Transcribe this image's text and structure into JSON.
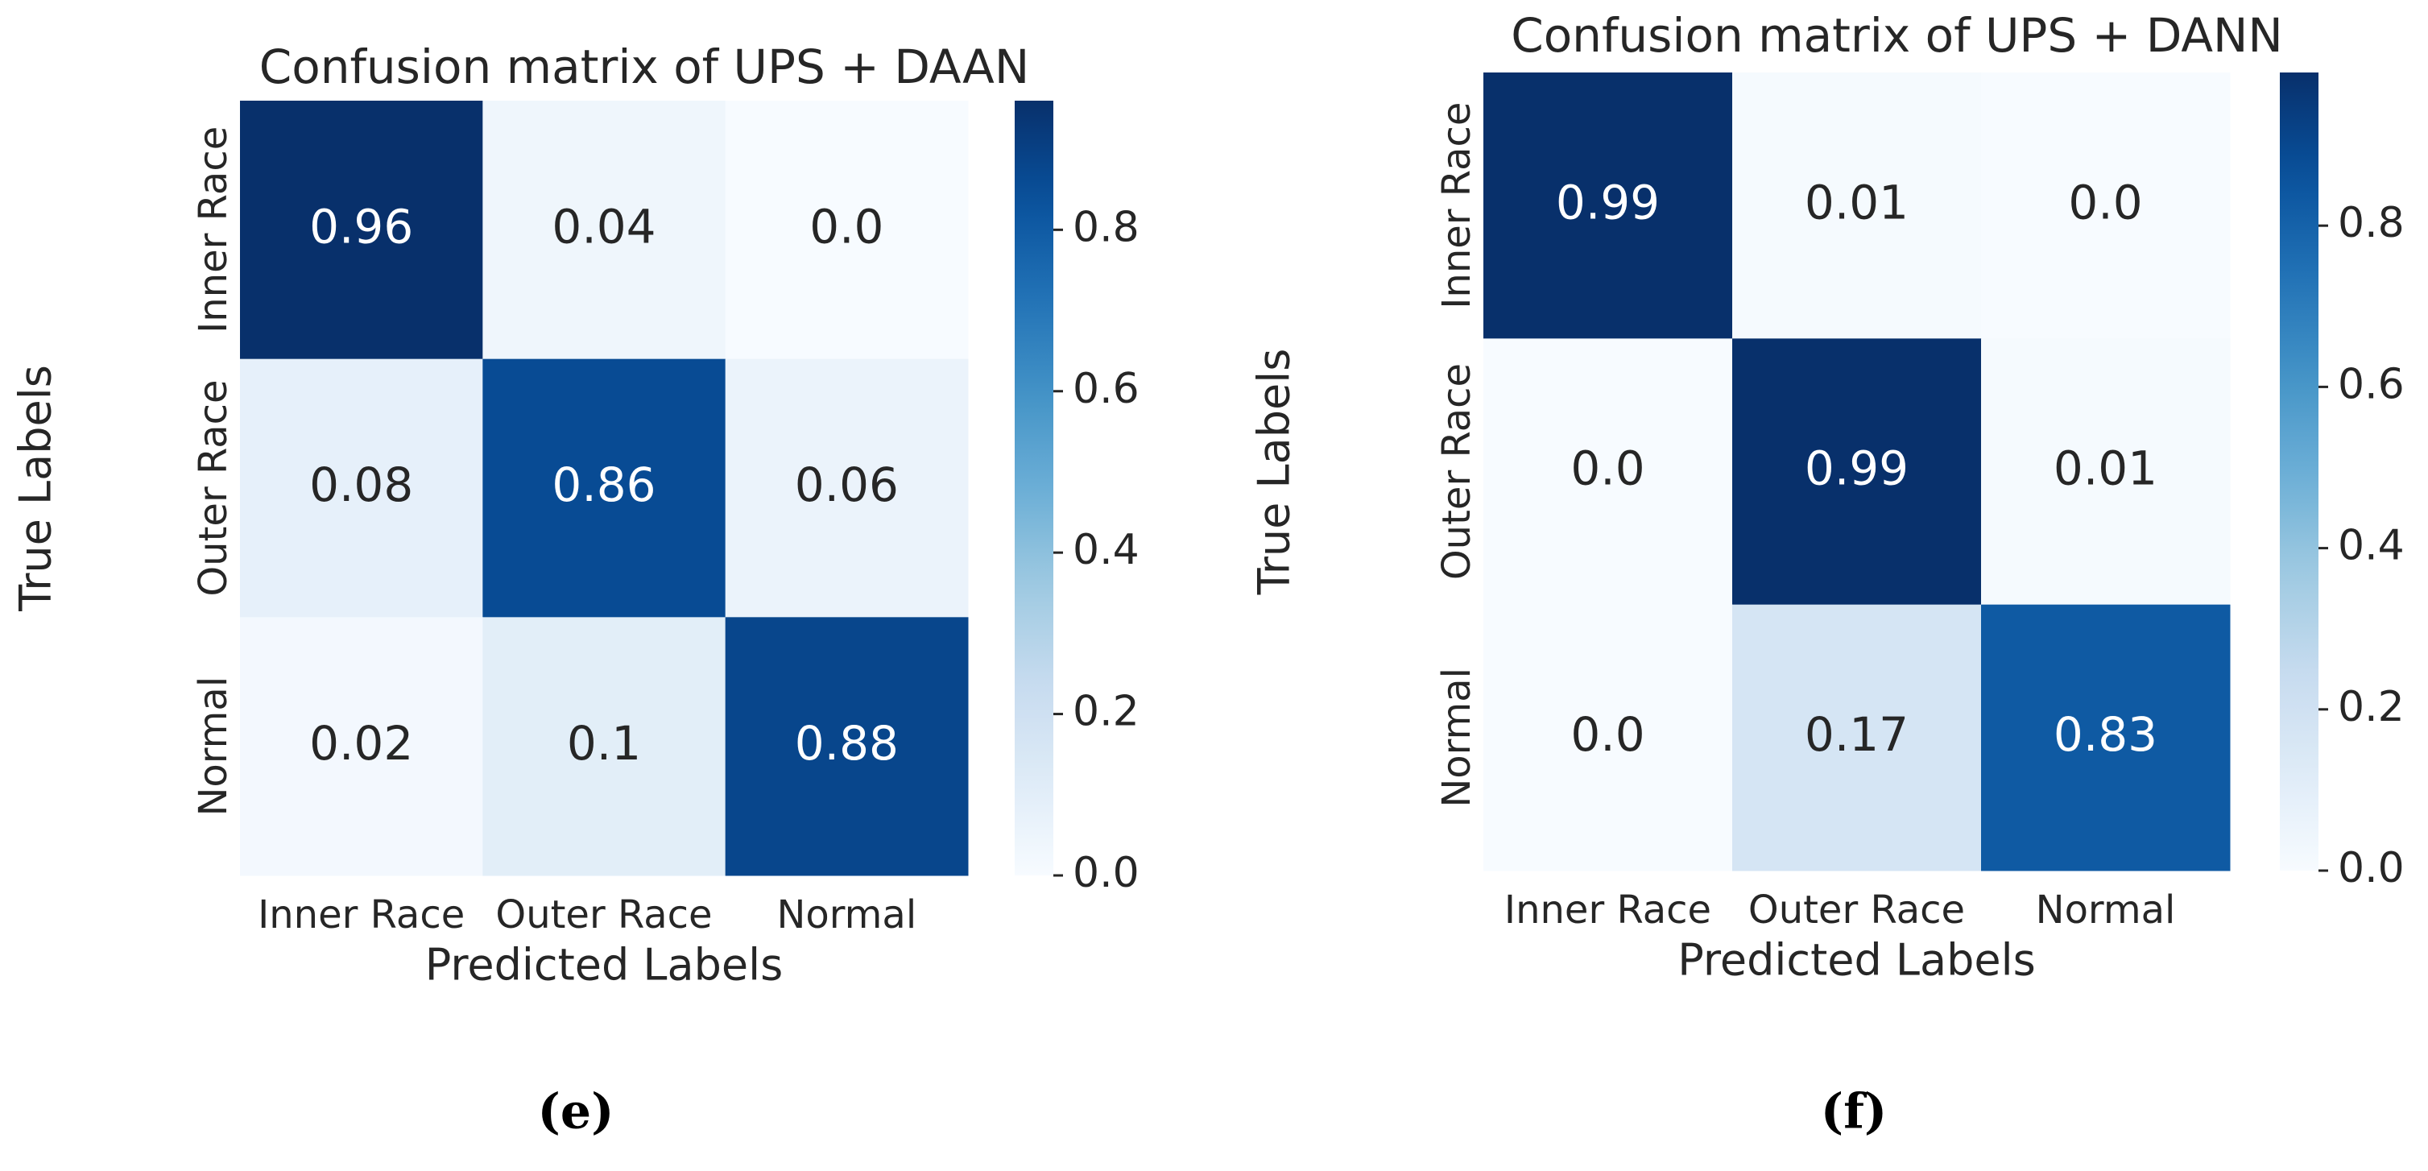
{
  "chart_data": [
    {
      "type": "heatmap",
      "title": "Confusion matrix of UPS + DAAN",
      "xlabel": "Predicted Labels",
      "ylabel": "True Labels",
      "x": [
        "Inner Race",
        "Outer Race",
        "Normal"
      ],
      "y": [
        "Inner Race",
        "Outer Race",
        "Normal"
      ],
      "values": [
        [
          0.96,
          0.04,
          0.0
        ],
        [
          0.08,
          0.86,
          0.06
        ],
        [
          0.02,
          0.1,
          0.88
        ]
      ],
      "value_labels": [
        [
          "0.96",
          "0.04",
          "0.0"
        ],
        [
          "0.08",
          "0.86",
          "0.06"
        ],
        [
          "0.02",
          "0.1",
          "0.88"
        ]
      ],
      "colormap": "Blues",
      "clim": [
        0,
        0.96
      ],
      "cticks": [
        {
          "value": 0,
          "label": "0.0"
        },
        0.2,
        0.4,
        0.6,
        0.8
      ],
      "caption": "(e)"
    },
    {
      "type": "heatmap",
      "title": "Confusion matrix of UPS + DANN",
      "xlabel": "Predicted Labels",
      "ylabel": "True Labels",
      "x": [
        "Inner Race",
        "Outer Race",
        "Normal"
      ],
      "y": [
        "Inner Race",
        "Outer Race",
        "Normal"
      ],
      "values": [
        [
          0.99,
          0.01,
          0.0
        ],
        [
          0.0,
          0.99,
          0.01
        ],
        [
          0.0,
          0.17,
          0.83
        ]
      ],
      "value_labels": [
        [
          "0.99",
          "0.01",
          "0.0"
        ],
        [
          "0.0",
          "0.99",
          "0.01"
        ],
        [
          "0.0",
          "0.17",
          "0.83"
        ]
      ],
      "colormap": "Blues",
      "clim": [
        0,
        0.99
      ],
      "cticks": [
        {
          "value": 0,
          "label": "0.0"
        },
        0.2,
        0.4,
        0.6,
        0.8
      ],
      "caption": "(f)"
    }
  ]
}
